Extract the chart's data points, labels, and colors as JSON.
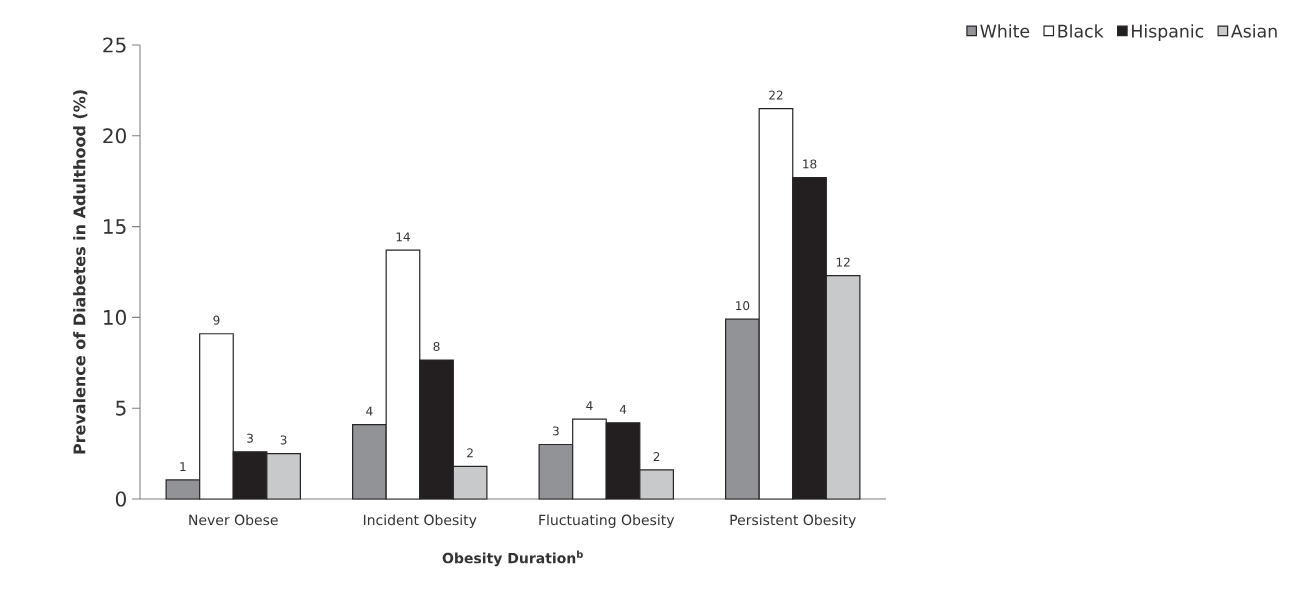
{
  "chart_data": {
    "type": "bar",
    "xlabel": "Obesity Duration$^{b}$",
    "ylabel": "Prevalence of Diabetes in Adulthood (%)",
    "categories": [
      "Never Obese",
      "Incident Obesity",
      "Fluctuating Obesity",
      "Persistent Obesity"
    ],
    "series": [
      {
        "name": "White",
        "color": "#929396",
        "values": [
          1.05,
          4.1,
          3.0,
          9.9
        ],
        "value_labels": [
          "1",
          "4",
          "3",
          "10"
        ]
      },
      {
        "name": "Black",
        "color": "#ffffff",
        "values": [
          9.1,
          13.7,
          4.4,
          21.5
        ],
        "value_labels": [
          "9",
          "14",
          "4",
          "22"
        ]
      },
      {
        "name": "Hispanic",
        "color": "#231f20",
        "values": [
          2.6,
          7.65,
          4.2,
          17.7
        ],
        "value_labels": [
          "3",
          "8",
          "4",
          "18"
        ]
      },
      {
        "name": "Asian",
        "color": "#c8c9cb",
        "values": [
          2.5,
          1.8,
          1.6,
          12.3
        ],
        "value_labels": [
          "3",
          "2",
          "2",
          "12"
        ]
      }
    ],
    "ylim": [
      0,
      25
    ],
    "yticks": [
      0,
      5,
      10,
      15,
      20,
      25
    ],
    "grid": false,
    "legend": "top right"
  }
}
